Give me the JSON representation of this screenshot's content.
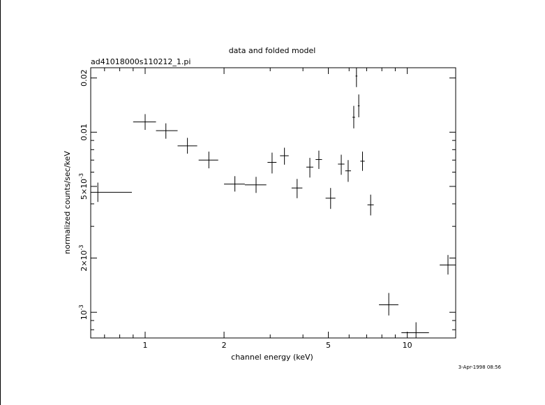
{
  "chart_data": {
    "type": "scatter",
    "title": "data and folded model",
    "subtitle": "ad41018000s110212_1.pi",
    "xlabel": "channel energy (keV)",
    "ylabel": "normalized counts/sec/keV",
    "timestamp": "3-Apr-1998 08:56",
    "x_scale": "log",
    "y_scale": "log",
    "xlim": [
      0.62,
      15.3
    ],
    "ylim": [
      0.00072,
      0.0228
    ],
    "x_ticks": [
      {
        "value": 1,
        "label": "1"
      },
      {
        "value": 2,
        "label": "2"
      },
      {
        "value": 5,
        "label": "5"
      },
      {
        "value": 10,
        "label": "10"
      }
    ],
    "y_ticks": [
      {
        "value": 0.001,
        "base": "10",
        "exp": "-3"
      },
      {
        "value": 0.002,
        "base": "2×10",
        "exp": "-3"
      },
      {
        "value": 0.005,
        "base": "5×10",
        "exp": "-3"
      },
      {
        "value": 0.01,
        "base": "0.01",
        "exp": ""
      },
      {
        "value": 0.02,
        "base": "0.02",
        "exp": ""
      }
    ],
    "series": [
      {
        "points": [
          {
            "x": 0.66,
            "xlo": 0.62,
            "xhi": 0.89,
            "y": 0.00464,
            "ylo": 0.0041,
            "yhi": 0.00525
          },
          {
            "x": 1.0,
            "xlo": 0.9,
            "xhi": 1.1,
            "y": 0.0114,
            "ylo": 0.0103,
            "yhi": 0.0126
          },
          {
            "x": 1.2,
            "xlo": 1.1,
            "xhi": 1.33,
            "y": 0.0102,
            "ylo": 0.0092,
            "yhi": 0.0112
          },
          {
            "x": 1.45,
            "xlo": 1.33,
            "xhi": 1.58,
            "y": 0.0084,
            "ylo": 0.0076,
            "yhi": 0.0093
          },
          {
            "x": 1.75,
            "xlo": 1.6,
            "xhi": 1.9,
            "y": 0.007,
            "ylo": 0.0063,
            "yhi": 0.0078
          },
          {
            "x": 2.2,
            "xlo": 2.0,
            "xhi": 2.4,
            "y": 0.00515,
            "ylo": 0.00468,
            "yhi": 0.0057
          },
          {
            "x": 2.65,
            "xlo": 2.4,
            "xhi": 2.9,
            "y": 0.0051,
            "ylo": 0.0046,
            "yhi": 0.00565
          },
          {
            "x": 3.05,
            "xlo": 2.93,
            "xhi": 3.17,
            "y": 0.0068,
            "ylo": 0.0059,
            "yhi": 0.0077
          },
          {
            "x": 3.4,
            "xlo": 3.27,
            "xhi": 3.53,
            "y": 0.0074,
            "ylo": 0.0066,
            "yhi": 0.0082
          },
          {
            "x": 3.8,
            "xlo": 3.62,
            "xhi": 3.98,
            "y": 0.0049,
            "ylo": 0.0043,
            "yhi": 0.0055
          },
          {
            "x": 4.25,
            "xlo": 4.12,
            "xhi": 4.38,
            "y": 0.0064,
            "ylo": 0.0056,
            "yhi": 0.0072
          },
          {
            "x": 4.6,
            "xlo": 4.47,
            "xhi": 4.73,
            "y": 0.00705,
            "ylo": 0.00625,
            "yhi": 0.0079
          },
          {
            "x": 5.1,
            "xlo": 4.88,
            "xhi": 5.32,
            "y": 0.0043,
            "ylo": 0.00375,
            "yhi": 0.0049
          },
          {
            "x": 5.6,
            "xlo": 5.44,
            "xhi": 5.76,
            "y": 0.00665,
            "ylo": 0.0058,
            "yhi": 0.0075
          },
          {
            "x": 5.95,
            "xlo": 5.8,
            "xhi": 6.1,
            "y": 0.0061,
            "ylo": 0.0053,
            "yhi": 0.007
          },
          {
            "x": 6.25,
            "xlo": 6.18,
            "xhi": 6.32,
            "y": 0.0121,
            "ylo": 0.0105,
            "yhi": 0.014
          },
          {
            "x": 6.4,
            "xlo": 6.35,
            "xhi": 6.45,
            "y": 0.0205,
            "ylo": 0.0178,
            "yhi": 0.0228
          },
          {
            "x": 6.53,
            "xlo": 6.48,
            "xhi": 6.58,
            "y": 0.014,
            "ylo": 0.0121,
            "yhi": 0.0162
          },
          {
            "x": 6.75,
            "xlo": 6.62,
            "xhi": 6.88,
            "y": 0.0069,
            "ylo": 0.0061,
            "yhi": 0.0078
          },
          {
            "x": 7.25,
            "xlo": 7.05,
            "xhi": 7.45,
            "y": 0.00395,
            "ylo": 0.00345,
            "yhi": 0.0045
          },
          {
            "x": 8.5,
            "xlo": 7.8,
            "xhi": 9.25,
            "y": 0.0011,
            "ylo": 0.00096,
            "yhi": 0.00128
          },
          {
            "x": 10.8,
            "xlo": 9.5,
            "xhi": 12.1,
            "y": 0.00077,
            "ylo": 0.00072,
            "yhi": 0.00088
          },
          {
            "x": 14.3,
            "xlo": 13.3,
            "xhi": 15.3,
            "y": 0.00183,
            "ylo": 0.00162,
            "yhi": 0.00208
          }
        ]
      }
    ]
  }
}
